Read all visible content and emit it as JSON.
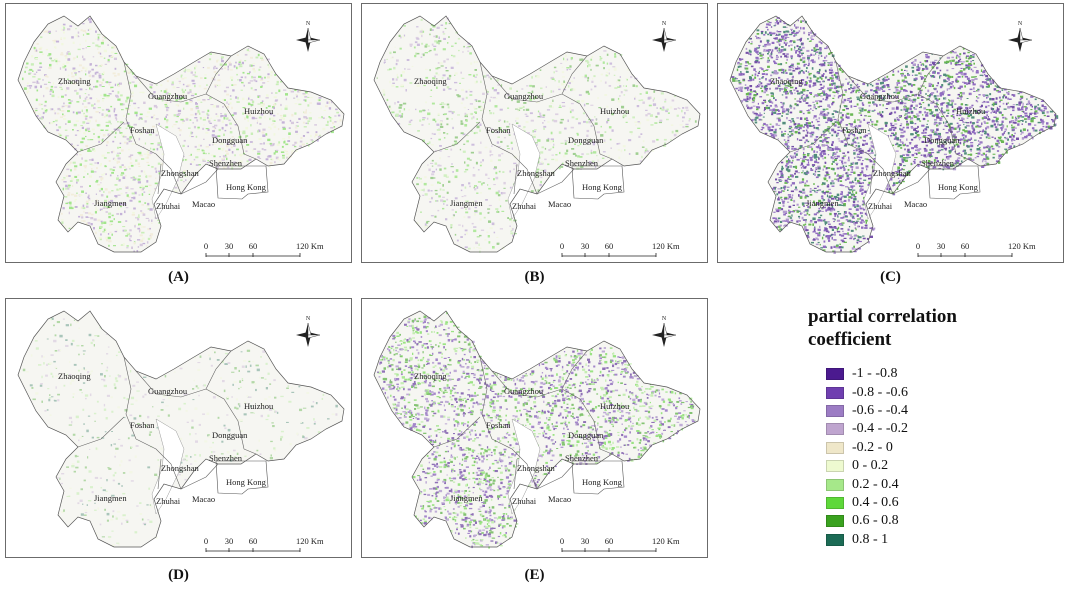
{
  "panels": [
    {
      "id": "A",
      "label": "(A)",
      "texture": "mixed-light"
    },
    {
      "id": "B",
      "label": "(B)",
      "texture": "green-sparse"
    },
    {
      "id": "C",
      "label": "(C)",
      "texture": "purple-dense"
    },
    {
      "id": "D",
      "label": "(D)",
      "texture": "very-sparse"
    },
    {
      "id": "E",
      "label": "(E)",
      "texture": "mixed-strong"
    }
  ],
  "cities": [
    "Zhaoqing",
    "Guangzhou",
    "Huizhou",
    "Foshan",
    "Dongguan",
    "Zhongshan",
    "Shenzhen",
    "Jiangmen",
    "Hong Kong",
    "Zhuhai",
    "Macao"
  ],
  "north_arrow": {
    "label": "N",
    "icon": "north-arrow-icon"
  },
  "scale_bar": {
    "ticks": [
      "0",
      "30",
      "60",
      "120 Km"
    ]
  },
  "legend": {
    "title_line1": "partial correlation",
    "title_line2": "coefficient",
    "classes": [
      {
        "label": "-1 - -0.8",
        "color": "#4b1a8f"
      },
      {
        "label": "-0.8 - -0.6",
        "color": "#6f3fb0"
      },
      {
        "label": "-0.6 - -0.4",
        "color": "#9c7cc4"
      },
      {
        "label": "-0.4 - -0.2",
        "color": "#bfa5cf"
      },
      {
        "label": "-0.2 - 0",
        "color": "#efe7c9"
      },
      {
        "label": "0 - 0.2",
        "color": "#eefad0"
      },
      {
        "label": "0.2 - 0.4",
        "color": "#a6e88a"
      },
      {
        "label": "0.4 - 0.6",
        "color": "#5ed83a"
      },
      {
        "label": "0.6 - 0.8",
        "color": "#3aa21f"
      },
      {
        "label": "0.8 - 1",
        "color": "#1c6b55"
      }
    ]
  }
}
